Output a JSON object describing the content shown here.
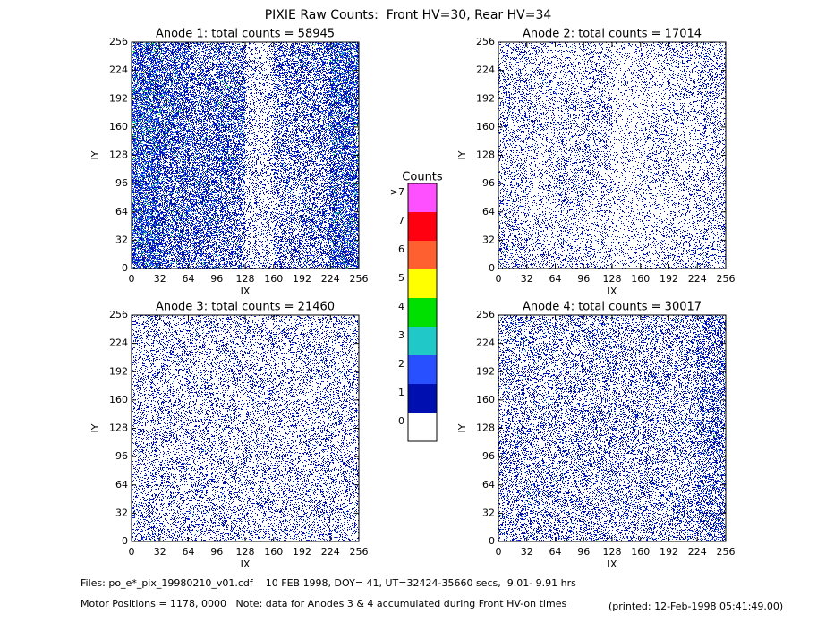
{
  "title": "PIXIE Raw Counts:  Front HV=30, Rear HV=34",
  "colorbar": {
    "title": "Counts",
    "levels": [
      0,
      1,
      2,
      3,
      4,
      5,
      6,
      7,
      {
        "value": 8,
        "label": ">7"
      }
    ],
    "colors": [
      "#ffffff",
      "#0010b0",
      "#2850ff",
      "#20c8c8",
      "#00e000",
      "#ffff00",
      "#ff6030",
      "#ff0010",
      "#ff50ff"
    ]
  },
  "chart_data": [
    {
      "type": "heatmap",
      "title": "Anode 1: total counts = 58945",
      "xlabel": "IX",
      "ylabel": "IY",
      "xlim": [
        0,
        256
      ],
      "ylim": [
        0,
        256
      ],
      "xticks": [
        0,
        32,
        64,
        96,
        128,
        160,
        192,
        224,
        256
      ],
      "yticks": [
        0,
        32,
        64,
        96,
        128,
        160,
        192,
        224,
        256
      ],
      "values": [
        [
          1.3,
          1.0,
          0.7,
          0.8,
          0.3,
          0.8,
          0.9,
          1.4
        ],
        [
          1.4,
          1.1,
          0.8,
          1.0,
          0.3,
          0.7,
          0.7,
          1.3
        ],
        [
          1.5,
          1.2,
          0.9,
          1.1,
          0.3,
          0.6,
          0.8,
          1.3
        ],
        [
          1.5,
          1.1,
          0.9,
          1.0,
          0.3,
          0.7,
          0.7,
          1.2
        ],
        [
          1.4,
          1.0,
          1.0,
          0.9,
          0.3,
          0.6,
          0.6,
          1.2
        ],
        [
          1.4,
          1.0,
          1.1,
          0.8,
          0.3,
          0.5,
          0.7,
          1.3
        ],
        [
          1.5,
          1.1,
          0.9,
          0.8,
          0.3,
          0.6,
          0.8,
          1.3
        ],
        [
          1.5,
          1.0,
          0.9,
          0.8,
          0.3,
          0.7,
          0.7,
          1.4
        ]
      ]
    },
    {
      "type": "heatmap",
      "title": "Anode 2: total counts = 17014",
      "xlabel": "IX",
      "ylabel": "IY",
      "xlim": [
        0,
        256
      ],
      "ylim": [
        0,
        256
      ],
      "xticks": [
        0,
        32,
        64,
        96,
        128,
        160,
        192,
        224,
        256
      ],
      "yticks": [
        0,
        32,
        64,
        96,
        128,
        160,
        192,
        224,
        256
      ],
      "values": [
        [
          0.3,
          0.25,
          0.2,
          0.3,
          0.15,
          0.25,
          0.3,
          0.35
        ],
        [
          0.35,
          0.3,
          0.25,
          0.3,
          0.15,
          0.2,
          0.25,
          0.35
        ],
        [
          0.35,
          0.3,
          0.3,
          0.35,
          0.15,
          0.2,
          0.25,
          0.3
        ],
        [
          0.3,
          0.25,
          0.3,
          0.35,
          0.15,
          0.25,
          0.2,
          0.3
        ],
        [
          0.3,
          0.2,
          0.35,
          0.3,
          0.15,
          0.3,
          0.25,
          0.3
        ],
        [
          0.3,
          0.2,
          0.35,
          0.25,
          0.15,
          0.2,
          0.2,
          0.3
        ],
        [
          0.35,
          0.25,
          0.25,
          0.2,
          0.15,
          0.2,
          0.25,
          0.3
        ],
        [
          0.4,
          0.3,
          0.3,
          0.25,
          0.15,
          0.25,
          0.3,
          0.35
        ]
      ]
    },
    {
      "type": "heatmap",
      "title": "Anode 3: total counts = 21460",
      "xlabel": "IX",
      "ylabel": "IY",
      "xlim": [
        0,
        256
      ],
      "ylim": [
        0,
        256
      ],
      "xticks": [
        0,
        32,
        64,
        96,
        128,
        160,
        192,
        224,
        256
      ],
      "yticks": [
        0,
        32,
        64,
        96,
        128,
        160,
        192,
        224,
        256
      ],
      "values": [
        [
          0.35,
          0.3,
          0.35,
          0.3,
          0.3,
          0.35,
          0.3,
          0.35
        ],
        [
          0.3,
          0.35,
          0.3,
          0.35,
          0.3,
          0.3,
          0.35,
          0.3
        ],
        [
          0.35,
          0.3,
          0.35,
          0.3,
          0.35,
          0.3,
          0.3,
          0.35
        ],
        [
          0.3,
          0.35,
          0.3,
          0.35,
          0.3,
          0.35,
          0.3,
          0.3
        ],
        [
          0.35,
          0.3,
          0.35,
          0.3,
          0.35,
          0.3,
          0.35,
          0.3
        ],
        [
          0.3,
          0.35,
          0.3,
          0.35,
          0.3,
          0.35,
          0.3,
          0.35
        ],
        [
          0.35,
          0.3,
          0.35,
          0.3,
          0.35,
          0.3,
          0.35,
          0.3
        ],
        [
          0.4,
          0.35,
          0.35,
          0.35,
          0.3,
          0.35,
          0.35,
          0.35
        ]
      ]
    },
    {
      "type": "heatmap",
      "title": "Anode 4: total counts = 30017",
      "xlabel": "IX",
      "ylabel": "IY",
      "xlim": [
        0,
        256
      ],
      "ylim": [
        0,
        256
      ],
      "xticks": [
        0,
        32,
        64,
        96,
        128,
        160,
        192,
        224,
        256
      ],
      "yticks": [
        0,
        32,
        64,
        96,
        128,
        160,
        192,
        224,
        256
      ],
      "values": [
        [
          0.45,
          0.4,
          0.4,
          0.45,
          0.4,
          0.45,
          0.45,
          0.7
        ],
        [
          0.4,
          0.45,
          0.4,
          0.4,
          0.45,
          0.4,
          0.45,
          0.7
        ],
        [
          0.45,
          0.4,
          0.45,
          0.4,
          0.4,
          0.45,
          0.4,
          0.65
        ],
        [
          0.4,
          0.45,
          0.4,
          0.45,
          0.4,
          0.4,
          0.45,
          0.7
        ],
        [
          0.45,
          0.4,
          0.45,
          0.4,
          0.45,
          0.4,
          0.45,
          0.75
        ],
        [
          0.4,
          0.45,
          0.4,
          0.45,
          0.4,
          0.45,
          0.4,
          0.65
        ],
        [
          0.45,
          0.45,
          0.45,
          0.4,
          0.45,
          0.4,
          0.45,
          0.7
        ],
        [
          0.5,
          0.45,
          0.45,
          0.45,
          0.4,
          0.45,
          0.45,
          0.7
        ]
      ]
    }
  ],
  "footer": {
    "files": "Files: po_e*_pix_19980210_v01.cdf    10 FEB 1998, DOY= 41, UT=32424-35660 secs,  9.01- 9.91 hrs",
    "motor": "Motor Positions = 1178, 0000   Note: data for Anodes 3 & 4 accumulated during Front HV-on times",
    "printed": "(printed: 12-Feb-1998 05:41:49.00)"
  }
}
